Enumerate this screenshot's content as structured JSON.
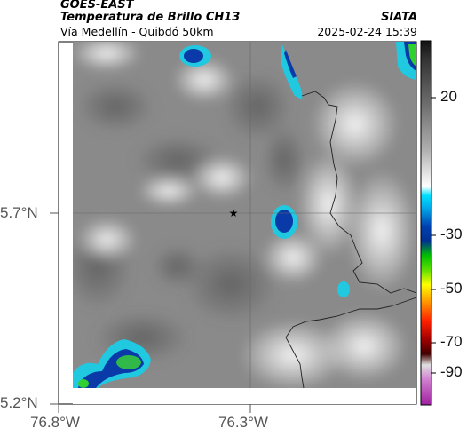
{
  "header": {
    "satellite": "GOES-EAST",
    "product": "Temperatura de Brillo CH13",
    "region": "Vía Medellín - Quibdó 50km",
    "source": "SIATA",
    "timestamp": "2025-02-24 15:39"
  },
  "axes": {
    "lat_labels": [
      "5.7°N",
      "5.2°N"
    ],
    "lon_labels": [
      "76.8°W",
      "76.3°W"
    ]
  },
  "colorbar": {
    "tick_labels": [
      "20",
      "-30",
      "-50",
      "-70",
      "-90"
    ],
    "colors": [
      "#111111",
      "#555555",
      "#9a9a9a",
      "#dddddd",
      "#ffffff",
      "#00e0ff",
      "#0050c0",
      "#00d000",
      "#ffff00",
      "#ff8000",
      "#e00000",
      "#5a0000",
      "#cfcfcf",
      "#c040c0"
    ]
  },
  "map": {
    "marker_icon": "star-icon",
    "cloud_colors": {
      "cyan": "#20c8e0",
      "blue": "#0a3aa8",
      "green": "#30b848"
    }
  }
}
